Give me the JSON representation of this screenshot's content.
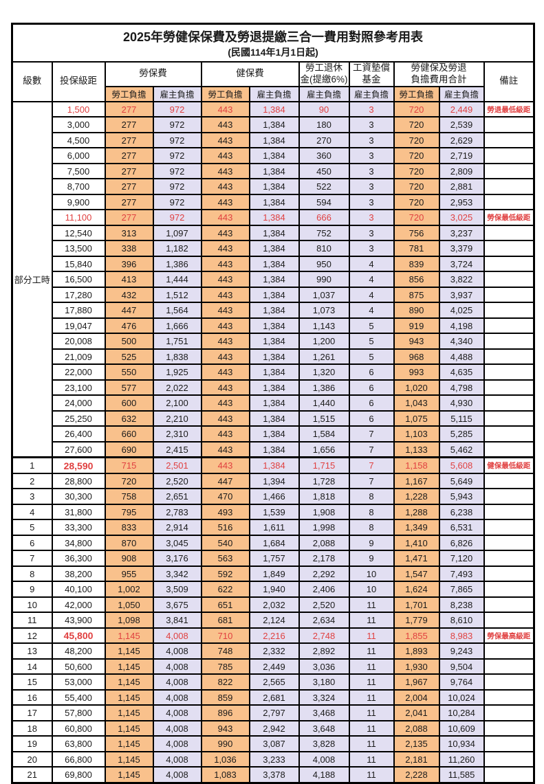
{
  "title": "2025年勞健保保費及勞退提繳三合一費用對照參考用表",
  "subtitle": "(民國114年1月1日起)",
  "part_time_label": "部分工時",
  "part_time_rowspan": 23,
  "colors": {
    "employee_bg": "#F9C18C",
    "employer_bg": "#E2DFF2",
    "highlight_text": "#E04040",
    "border": "#000000"
  },
  "header": {
    "level": "級數",
    "salary": "投保級距",
    "labor_group": "勞保費",
    "health_group": "健保費",
    "pension_line1": "勞工退休",
    "pension_line2": "金(提繳6%)",
    "fund_line1": "工資墊償",
    "fund_line2": "基金",
    "total_line1": "勞健保及勞退",
    "total_line2": "負擔費用合計",
    "remark": "備註",
    "employee": "勞工負擔",
    "employer": "雇主負擔"
  },
  "rows": [
    {
      "level": "",
      "salary": "1,500",
      "labor_emp": "277",
      "labor_er": "972",
      "health_emp": "443",
      "health_er": "1,384",
      "pension_er": "90",
      "fund_er": "3",
      "total_emp": "720",
      "total_er": "2,449",
      "note": "勞退最低級距",
      "red": true,
      "bold_salary": false
    },
    {
      "level": "",
      "salary": "3,000",
      "labor_emp": "277",
      "labor_er": "972",
      "health_emp": "443",
      "health_er": "1,384",
      "pension_er": "180",
      "fund_er": "3",
      "total_emp": "720",
      "total_er": "2,539",
      "note": "",
      "red": false,
      "bold_salary": false
    },
    {
      "level": "",
      "salary": "4,500",
      "labor_emp": "277",
      "labor_er": "972",
      "health_emp": "443",
      "health_er": "1,384",
      "pension_er": "270",
      "fund_er": "3",
      "total_emp": "720",
      "total_er": "2,629",
      "note": "",
      "red": false,
      "bold_salary": false
    },
    {
      "level": "",
      "salary": "6,000",
      "labor_emp": "277",
      "labor_er": "972",
      "health_emp": "443",
      "health_er": "1,384",
      "pension_er": "360",
      "fund_er": "3",
      "total_emp": "720",
      "total_er": "2,719",
      "note": "",
      "red": false,
      "bold_salary": false
    },
    {
      "level": "",
      "salary": "7,500",
      "labor_emp": "277",
      "labor_er": "972",
      "health_emp": "443",
      "health_er": "1,384",
      "pension_er": "450",
      "fund_er": "3",
      "total_emp": "720",
      "total_er": "2,809",
      "note": "",
      "red": false,
      "bold_salary": false
    },
    {
      "level": "",
      "salary": "8,700",
      "labor_emp": "277",
      "labor_er": "972",
      "health_emp": "443",
      "health_er": "1,384",
      "pension_er": "522",
      "fund_er": "3",
      "total_emp": "720",
      "total_er": "2,881",
      "note": "",
      "red": false,
      "bold_salary": false
    },
    {
      "level": "",
      "salary": "9,900",
      "labor_emp": "277",
      "labor_er": "972",
      "health_emp": "443",
      "health_er": "1,384",
      "pension_er": "594",
      "fund_er": "3",
      "total_emp": "720",
      "total_er": "2,953",
      "note": "",
      "red": false,
      "bold_salary": false
    },
    {
      "level": "",
      "salary": "11,100",
      "labor_emp": "277",
      "labor_er": "972",
      "health_emp": "443",
      "health_er": "1,384",
      "pension_er": "666",
      "fund_er": "3",
      "total_emp": "720",
      "total_er": "3,025",
      "note": "勞保最低級距",
      "red": true,
      "bold_salary": false
    },
    {
      "level": "",
      "salary": "12,540",
      "labor_emp": "313",
      "labor_er": "1,097",
      "health_emp": "443",
      "health_er": "1,384",
      "pension_er": "752",
      "fund_er": "3",
      "total_emp": "756",
      "total_er": "3,237",
      "note": "",
      "red": false,
      "bold_salary": false
    },
    {
      "level": "",
      "salary": "13,500",
      "labor_emp": "338",
      "labor_er": "1,182",
      "health_emp": "443",
      "health_er": "1,384",
      "pension_er": "810",
      "fund_er": "3",
      "total_emp": "781",
      "total_er": "3,379",
      "note": "",
      "red": false,
      "bold_salary": false
    },
    {
      "level": "",
      "salary": "15,840",
      "labor_emp": "396",
      "labor_er": "1,386",
      "health_emp": "443",
      "health_er": "1,384",
      "pension_er": "950",
      "fund_er": "4",
      "total_emp": "839",
      "total_er": "3,724",
      "note": "",
      "red": false,
      "bold_salary": false
    },
    {
      "level": "",
      "salary": "16,500",
      "labor_emp": "413",
      "labor_er": "1,444",
      "health_emp": "443",
      "health_er": "1,384",
      "pension_er": "990",
      "fund_er": "4",
      "total_emp": "856",
      "total_er": "3,822",
      "note": "",
      "red": false,
      "bold_salary": false
    },
    {
      "level": "",
      "salary": "17,280",
      "labor_emp": "432",
      "labor_er": "1,512",
      "health_emp": "443",
      "health_er": "1,384",
      "pension_er": "1,037",
      "fund_er": "4",
      "total_emp": "875",
      "total_er": "3,937",
      "note": "",
      "red": false,
      "bold_salary": false
    },
    {
      "level": "",
      "salary": "17,880",
      "labor_emp": "447",
      "labor_er": "1,564",
      "health_emp": "443",
      "health_er": "1,384",
      "pension_er": "1,073",
      "fund_er": "4",
      "total_emp": "890",
      "total_er": "4,025",
      "note": "",
      "red": false,
      "bold_salary": false
    },
    {
      "level": "",
      "salary": "19,047",
      "labor_emp": "476",
      "labor_er": "1,666",
      "health_emp": "443",
      "health_er": "1,384",
      "pension_er": "1,143",
      "fund_er": "5",
      "total_emp": "919",
      "total_er": "4,198",
      "note": "",
      "red": false,
      "bold_salary": false
    },
    {
      "level": "",
      "salary": "20,008",
      "labor_emp": "500",
      "labor_er": "1,751",
      "health_emp": "443",
      "health_er": "1,384",
      "pension_er": "1,200",
      "fund_er": "5",
      "total_emp": "943",
      "total_er": "4,340",
      "note": "",
      "red": false,
      "bold_salary": false
    },
    {
      "level": "",
      "salary": "21,009",
      "labor_emp": "525",
      "labor_er": "1,838",
      "health_emp": "443",
      "health_er": "1,384",
      "pension_er": "1,261",
      "fund_er": "5",
      "total_emp": "968",
      "total_er": "4,488",
      "note": "",
      "red": false,
      "bold_salary": false
    },
    {
      "level": "",
      "salary": "22,000",
      "labor_emp": "550",
      "labor_er": "1,925",
      "health_emp": "443",
      "health_er": "1,384",
      "pension_er": "1,320",
      "fund_er": "6",
      "total_emp": "993",
      "total_er": "4,635",
      "note": "",
      "red": false,
      "bold_salary": false
    },
    {
      "level": "",
      "salary": "23,100",
      "labor_emp": "577",
      "labor_er": "2,022",
      "health_emp": "443",
      "health_er": "1,384",
      "pension_er": "1,386",
      "fund_er": "6",
      "total_emp": "1,020",
      "total_er": "4,798",
      "note": "",
      "red": false,
      "bold_salary": false
    },
    {
      "level": "",
      "salary": "24,000",
      "labor_emp": "600",
      "labor_er": "2,100",
      "health_emp": "443",
      "health_er": "1,384",
      "pension_er": "1,440",
      "fund_er": "6",
      "total_emp": "1,043",
      "total_er": "4,930",
      "note": "",
      "red": false,
      "bold_salary": false
    },
    {
      "level": "",
      "salary": "25,250",
      "labor_emp": "632",
      "labor_er": "2,210",
      "health_emp": "443",
      "health_er": "1,384",
      "pension_er": "1,515",
      "fund_er": "6",
      "total_emp": "1,075",
      "total_er": "5,115",
      "note": "",
      "red": false,
      "bold_salary": false
    },
    {
      "level": "",
      "salary": "26,400",
      "labor_emp": "660",
      "labor_er": "2,310",
      "health_emp": "443",
      "health_er": "1,384",
      "pension_er": "1,584",
      "fund_er": "7",
      "total_emp": "1,103",
      "total_er": "5,285",
      "note": "",
      "red": false,
      "bold_salary": false
    },
    {
      "level": "",
      "salary": "27,600",
      "labor_emp": "690",
      "labor_er": "2,415",
      "health_emp": "443",
      "health_er": "1,384",
      "pension_er": "1,656",
      "fund_er": "7",
      "total_emp": "1,133",
      "total_er": "5,462",
      "note": "",
      "red": false,
      "bold_salary": false
    },
    {
      "level": "1",
      "salary": "28,590",
      "labor_emp": "715",
      "labor_er": "2,501",
      "health_emp": "443",
      "health_er": "1,384",
      "pension_er": "1,715",
      "fund_er": "7",
      "total_emp": "1,158",
      "total_er": "5,608",
      "note": "健保最低級距",
      "red": true,
      "bold_salary": true,
      "heavy_top": true
    },
    {
      "level": "2",
      "salary": "28,800",
      "labor_emp": "720",
      "labor_er": "2,520",
      "health_emp": "447",
      "health_er": "1,394",
      "pension_er": "1,728",
      "fund_er": "7",
      "total_emp": "1,167",
      "total_er": "5,649",
      "note": "",
      "red": false,
      "bold_salary": false
    },
    {
      "level": "3",
      "salary": "30,300",
      "labor_emp": "758",
      "labor_er": "2,651",
      "health_emp": "470",
      "health_er": "1,466",
      "pension_er": "1,818",
      "fund_er": "8",
      "total_emp": "1,228",
      "total_er": "5,943",
      "note": "",
      "red": false,
      "bold_salary": false
    },
    {
      "level": "4",
      "salary": "31,800",
      "labor_emp": "795",
      "labor_er": "2,783",
      "health_emp": "493",
      "health_er": "1,539",
      "pension_er": "1,908",
      "fund_er": "8",
      "total_emp": "1,288",
      "total_er": "6,238",
      "note": "",
      "red": false,
      "bold_salary": false
    },
    {
      "level": "5",
      "salary": "33,300",
      "labor_emp": "833",
      "labor_er": "2,914",
      "health_emp": "516",
      "health_er": "1,611",
      "pension_er": "1,998",
      "fund_er": "8",
      "total_emp": "1,349",
      "total_er": "6,531",
      "note": "",
      "red": false,
      "bold_salary": false
    },
    {
      "level": "6",
      "salary": "34,800",
      "labor_emp": "870",
      "labor_er": "3,045",
      "health_emp": "540",
      "health_er": "1,684",
      "pension_er": "2,088",
      "fund_er": "9",
      "total_emp": "1,410",
      "total_er": "6,826",
      "note": "",
      "red": false,
      "bold_salary": false
    },
    {
      "level": "7",
      "salary": "36,300",
      "labor_emp": "908",
      "labor_er": "3,176",
      "health_emp": "563",
      "health_er": "1,757",
      "pension_er": "2,178",
      "fund_er": "9",
      "total_emp": "1,471",
      "total_er": "7,120",
      "note": "",
      "red": false,
      "bold_salary": false
    },
    {
      "level": "8",
      "salary": "38,200",
      "labor_emp": "955",
      "labor_er": "3,342",
      "health_emp": "592",
      "health_er": "1,849",
      "pension_er": "2,292",
      "fund_er": "10",
      "total_emp": "1,547",
      "total_er": "7,493",
      "note": "",
      "red": false,
      "bold_salary": false
    },
    {
      "level": "9",
      "salary": "40,100",
      "labor_emp": "1,002",
      "labor_er": "3,509",
      "health_emp": "622",
      "health_er": "1,940",
      "pension_er": "2,406",
      "fund_er": "10",
      "total_emp": "1,624",
      "total_er": "7,865",
      "note": "",
      "red": false,
      "bold_salary": false
    },
    {
      "level": "10",
      "salary": "42,000",
      "labor_emp": "1,050",
      "labor_er": "3,675",
      "health_emp": "651",
      "health_er": "2,032",
      "pension_er": "2,520",
      "fund_er": "11",
      "total_emp": "1,701",
      "total_er": "8,238",
      "note": "",
      "red": false,
      "bold_salary": false
    },
    {
      "level": "11",
      "salary": "43,900",
      "labor_emp": "1,098",
      "labor_er": "3,841",
      "health_emp": "681",
      "health_er": "2,124",
      "pension_er": "2,634",
      "fund_er": "11",
      "total_emp": "1,779",
      "total_er": "8,610",
      "note": "",
      "red": false,
      "bold_salary": false
    },
    {
      "level": "12",
      "salary": "45,800",
      "labor_emp": "1,145",
      "labor_er": "4,008",
      "health_emp": "710",
      "health_er": "2,216",
      "pension_er": "2,748",
      "fund_er": "11",
      "total_emp": "1,855",
      "total_er": "8,983",
      "note": "勞保最高級距",
      "red": true,
      "bold_salary": true
    },
    {
      "level": "13",
      "salary": "48,200",
      "labor_emp": "1,145",
      "labor_er": "4,008",
      "health_emp": "748",
      "health_er": "2,332",
      "pension_er": "2,892",
      "fund_er": "11",
      "total_emp": "1,893",
      "total_er": "9,243",
      "note": "",
      "red": false,
      "bold_salary": false
    },
    {
      "level": "14",
      "salary": "50,600",
      "labor_emp": "1,145",
      "labor_er": "4,008",
      "health_emp": "785",
      "health_er": "2,449",
      "pension_er": "3,036",
      "fund_er": "11",
      "total_emp": "1,930",
      "total_er": "9,504",
      "note": "",
      "red": false,
      "bold_salary": false
    },
    {
      "level": "15",
      "salary": "53,000",
      "labor_emp": "1,145",
      "labor_er": "4,008",
      "health_emp": "822",
      "health_er": "2,565",
      "pension_er": "3,180",
      "fund_er": "11",
      "total_emp": "1,967",
      "total_er": "9,764",
      "note": "",
      "red": false,
      "bold_salary": false
    },
    {
      "level": "16",
      "salary": "55,400",
      "labor_emp": "1,145",
      "labor_er": "4,008",
      "health_emp": "859",
      "health_er": "2,681",
      "pension_er": "3,324",
      "fund_er": "11",
      "total_emp": "2,004",
      "total_er": "10,024",
      "note": "",
      "red": false,
      "bold_salary": false
    },
    {
      "level": "17",
      "salary": "57,800",
      "labor_emp": "1,145",
      "labor_er": "4,008",
      "health_emp": "896",
      "health_er": "2,797",
      "pension_er": "3,468",
      "fund_er": "11",
      "total_emp": "2,041",
      "total_er": "10,284",
      "note": "",
      "red": false,
      "bold_salary": false
    },
    {
      "level": "18",
      "salary": "60,800",
      "labor_emp": "1,145",
      "labor_er": "4,008",
      "health_emp": "943",
      "health_er": "2,942",
      "pension_er": "3,648",
      "fund_er": "11",
      "total_emp": "2,088",
      "total_er": "10,609",
      "note": "",
      "red": false,
      "bold_salary": false
    },
    {
      "level": "19",
      "salary": "63,800",
      "labor_emp": "1,145",
      "labor_er": "4,008",
      "health_emp": "990",
      "health_er": "3,087",
      "pension_er": "3,828",
      "fund_er": "11",
      "total_emp": "2,135",
      "total_er": "10,934",
      "note": "",
      "red": false,
      "bold_salary": false
    },
    {
      "level": "20",
      "salary": "66,800",
      "labor_emp": "1,145",
      "labor_er": "4,008",
      "health_emp": "1,036",
      "health_er": "3,233",
      "pension_er": "4,008",
      "fund_er": "11",
      "total_emp": "2,181",
      "total_er": "11,260",
      "note": "",
      "red": false,
      "bold_salary": false
    },
    {
      "level": "21",
      "salary": "69,800",
      "labor_emp": "1,145",
      "labor_er": "4,008",
      "health_emp": "1,083",
      "health_er": "3,378",
      "pension_er": "4,188",
      "fund_er": "11",
      "total_emp": "2,228",
      "total_er": "11,585",
      "note": "",
      "red": false,
      "bold_salary": false
    }
  ]
}
